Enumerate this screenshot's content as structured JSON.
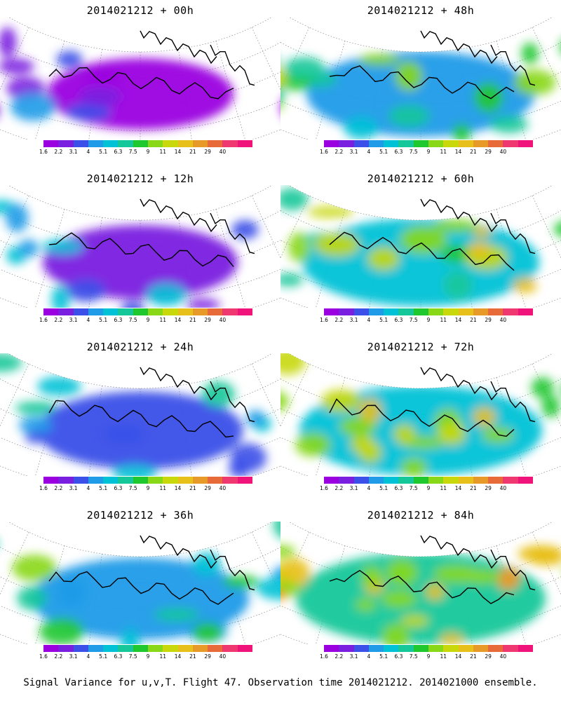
{
  "panels": [
    {
      "title": "2014021212 + 00h",
      "intensity": 0.05
    },
    {
      "title": "2014021212 + 48h",
      "intensity": 0.55
    },
    {
      "title": "2014021212 + 12h",
      "intensity": 0.15
    },
    {
      "title": "2014021212 + 60h",
      "intensity": 0.65
    },
    {
      "title": "2014021212 + 24h",
      "intensity": 0.28
    },
    {
      "title": "2014021212 + 72h",
      "intensity": 0.72
    },
    {
      "title": "2014021212 + 36h",
      "intensity": 0.42
    },
    {
      "title": "2014021212 + 84h",
      "intensity": 0.8
    }
  ],
  "colorbar": {
    "colors": [
      "#9a00e0",
      "#7a1ee0",
      "#3a50e8",
      "#1f9be8",
      "#00c2d6",
      "#14c89a",
      "#20c830",
      "#88d818",
      "#c8d80a",
      "#e8c01a",
      "#e89a28",
      "#e86a38",
      "#f03870",
      "#f0147a"
    ],
    "labels": [
      "1.6",
      "2.2",
      "3.1",
      "4",
      "5.1",
      "6.3",
      "7.5",
      "9",
      "11",
      "14",
      "21",
      "29",
      "40"
    ]
  },
  "footer": "Signal Variance for u,v,T. Flight 47. Observation time 2014021212. 2014021000 ensemble."
}
